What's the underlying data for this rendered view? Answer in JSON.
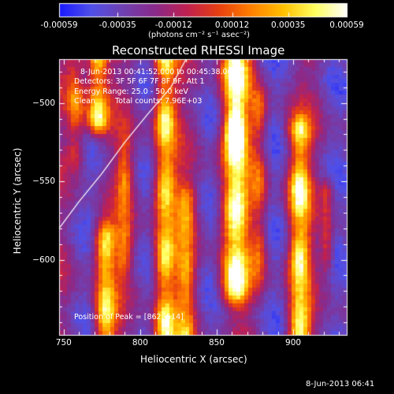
{
  "colorbar": {
    "tick_labels": [
      "-0.00059",
      "-0.00035",
      "-0.00012",
      "0.00012",
      "0.00035",
      "0.00059"
    ],
    "tick_values": [
      -0.00059,
      -0.00035,
      -0.00012,
      0.00012,
      0.00035,
      0.00059
    ],
    "range": [
      -0.00059,
      0.00059
    ],
    "unit_label": "(photons cm⁻² s⁻¹ asec⁻²)"
  },
  "chart_data": {
    "type": "heatmap",
    "title": "Reconstructed RHESSI Image",
    "xlabel": "Heliocentric X (arcsec)",
    "ylabel": "Heliocentric Y (arcsec)",
    "xlim": [
      747,
      935
    ],
    "ylim": [
      -648,
      -472
    ],
    "x_ticks": [
      750,
      800,
      850,
      900
    ],
    "y_ticks": [
      -500,
      -550,
      -600
    ],
    "x_tick_labels": [
      "750",
      "800",
      "850",
      "900"
    ],
    "y_tick_labels": [
      "−500",
      "−550",
      "−600"
    ],
    "colormap": [
      "#1a1aff",
      "#5050e8",
      "#7040b0",
      "#8a2a8a",
      "#c02050",
      "#e84010",
      "#ff8000",
      "#ffc000",
      "#ffff60",
      "#ffffff"
    ],
    "peak": [
      862,
      -514
    ],
    "limb_curve": {
      "x": [
        747,
        760,
        775,
        790,
        805,
        820,
        830
      ],
      "y": [
        -580,
        -563,
        -545,
        -525,
        -507,
        -490,
        -472
      ]
    },
    "annotations": [
      "8-Jun-2013 00:41:52.000 to 00:45:38.000",
      "Detectors: 3F 5F 6F 7F 8F 9F, Att 1",
      "Energy Range: 25.0 - 50.0 keV",
      "Clean",
      "Total counts: 7.96E+03",
      "Position of Peak = [862,-514]"
    ],
    "stripes": [
      {
        "x": 758,
        "w": 6,
        "a": 0.55,
        "y0": -530,
        "y1": -472
      },
      {
        "x": 772,
        "w": 7,
        "a": 0.95,
        "y0": -510,
        "y1": -472
      },
      {
        "x": 777,
        "w": 7,
        "a": 0.85,
        "y0": -648,
        "y1": -585
      },
      {
        "x": 790,
        "w": 5,
        "a": 0.45,
        "y0": -600,
        "y1": -530
      },
      {
        "x": 816,
        "w": 7,
        "a": 0.9,
        "y0": -648,
        "y1": -472
      },
      {
        "x": 830,
        "w": 6,
        "a": 0.55,
        "y0": -648,
        "y1": -560
      },
      {
        "x": 862,
        "w": 9,
        "a": 1.0,
        "y0": -620,
        "y1": -472
      },
      {
        "x": 878,
        "w": 5,
        "a": 0.4,
        "y0": -610,
        "y1": -500
      },
      {
        "x": 904,
        "w": 7,
        "a": 0.85,
        "y0": -648,
        "y1": -520
      },
      {
        "x": 922,
        "w": 4,
        "a": 0.4,
        "y0": -600,
        "y1": -560
      }
    ]
  },
  "footer": {
    "timestamp": "8-Jun-2013 06:41"
  }
}
